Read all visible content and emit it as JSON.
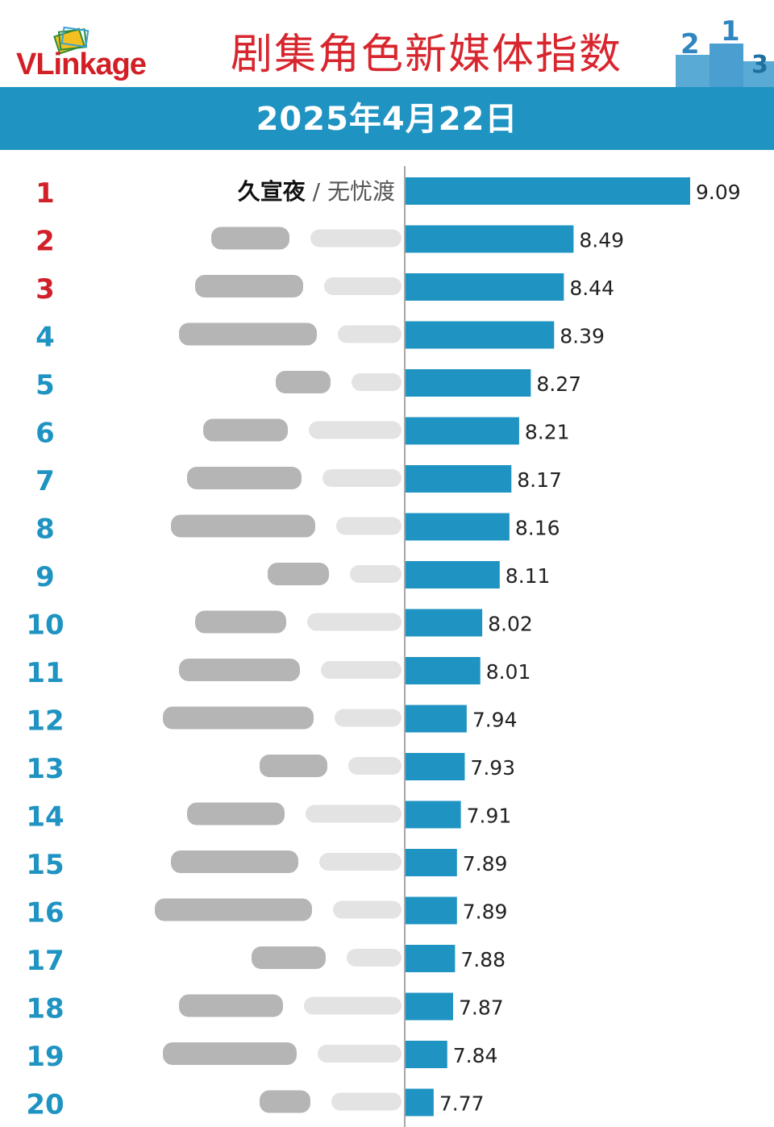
{
  "header": {
    "logo_text": "VLinkage",
    "title": "剧集角色新媒体指数",
    "date": "2025年4月22日"
  },
  "colors": {
    "bar": "#1f93c2",
    "band": "#1f93c2",
    "rank_top3": "#d0212a",
    "rank_rest": "#1f93c2",
    "title": "#d8262e"
  },
  "chart_data": {
    "type": "bar",
    "orientation": "horizontal",
    "categories": [
      "1",
      "2",
      "3",
      "4",
      "5",
      "6",
      "7",
      "8",
      "9",
      "10",
      "11",
      "12",
      "13",
      "14",
      "15",
      "16",
      "17",
      "18",
      "19",
      "20"
    ],
    "entries": [
      {
        "rank": "1",
        "role": "久宣夜",
        "drama": "无忧渡",
        "value": 9.09
      },
      {
        "rank": "2",
        "value": 8.49
      },
      {
        "rank": "3",
        "value": 8.44
      },
      {
        "rank": "4",
        "value": 8.39
      },
      {
        "rank": "5",
        "value": 8.27
      },
      {
        "rank": "6",
        "value": 8.21
      },
      {
        "rank": "7",
        "value": 8.17
      },
      {
        "rank": "8",
        "value": 8.16
      },
      {
        "rank": "9",
        "value": 8.11
      },
      {
        "rank": "10",
        "value": 8.02
      },
      {
        "rank": "11",
        "value": 8.01
      },
      {
        "rank": "12",
        "value": 7.94
      },
      {
        "rank": "13",
        "value": 7.93
      },
      {
        "rank": "14",
        "value": 7.91
      },
      {
        "rank": "15",
        "value": 7.89
      },
      {
        "rank": "16",
        "value": 7.89
      },
      {
        "rank": "17",
        "value": 7.88
      },
      {
        "rank": "18",
        "value": 7.87
      },
      {
        "rank": "19",
        "value": 7.84
      },
      {
        "rank": "20",
        "value": 7.77
      }
    ],
    "value_labels": [
      "9.09",
      "8.49",
      "8.44",
      "8.39",
      "8.27",
      "8.21",
      "8.17",
      "8.16",
      "8.11",
      "8.02",
      "8.01",
      "7.94",
      "7.93",
      "7.91",
      "7.89",
      "7.89",
      "7.88",
      "7.87",
      "7.84",
      "7.77"
    ],
    "xlim": [
      7.7,
      9.09
    ],
    "grid": false,
    "legend": "none"
  }
}
